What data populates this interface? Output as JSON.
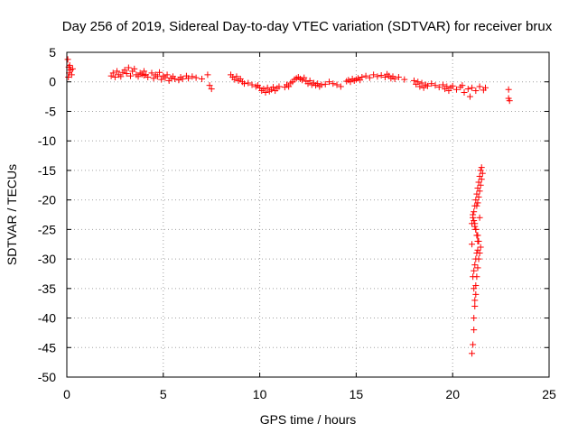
{
  "chart_data": {
    "type": "scatter",
    "title": "Day 256 of 2019, Sidereal Day-to-day VTEC variation (SDTVAR) for receiver brux",
    "xlabel": "GPS time / hours",
    "ylabel": "SDTVAR / TECUs",
    "xlim": [
      0,
      25
    ],
    "ylim": [
      -50,
      5
    ],
    "x_ticks": [
      0,
      5,
      10,
      15,
      20,
      25
    ],
    "y_ticks": [
      5,
      0,
      -5,
      -10,
      -15,
      -20,
      -25,
      -30,
      -35,
      -40,
      -45,
      -50
    ],
    "x_tick_labels": [
      "0",
      "5",
      "10",
      "15",
      "20",
      "25"
    ],
    "y_tick_labels": [
      "5",
      "0",
      "-5",
      "-10",
      "-15",
      "-20",
      "-25",
      "-30",
      "-35",
      "-40",
      "-45",
      "-50"
    ],
    "grid": true,
    "marker": "plus",
    "colors": {
      "series": "#ff0000",
      "grid": "#a0a0a0",
      "axes": "#000000"
    },
    "series": [
      {
        "name": "SDTVAR",
        "x": [
          0.05,
          0.1,
          0.12,
          0.15,
          0.2,
          0.25,
          0.3,
          0.08,
          2.3,
          2.4,
          2.5,
          2.6,
          2.7,
          2.8,
          2.9,
          3.0,
          3.1,
          3.2,
          3.3,
          3.4,
          3.5,
          3.6,
          3.7,
          3.8,
          3.9,
          4.0,
          4.0,
          4.1,
          4.2,
          4.4,
          4.5,
          4.6,
          4.7,
          4.8,
          4.9,
          5.0,
          5.1,
          5.2,
          5.3,
          5.4,
          5.5,
          5.6,
          5.8,
          5.9,
          6.0,
          6.2,
          6.3,
          6.5,
          6.7,
          7.0,
          7.3,
          7.4,
          7.5,
          8.5,
          8.6,
          8.7,
          8.8,
          8.9,
          9.0,
          9.1,
          9.2,
          9.4,
          9.6,
          9.8,
          9.9,
          10.0,
          10.1,
          10.2,
          10.3,
          10.4,
          10.5,
          10.6,
          10.7,
          10.8,
          10.9,
          11.0,
          11.3,
          11.4,
          11.5,
          11.6,
          11.7,
          11.8,
          11.9,
          12.0,
          12.1,
          12.2,
          12.3,
          12.4,
          12.5,
          12.6,
          12.7,
          12.8,
          12.9,
          13.0,
          13.1,
          13.2,
          13.4,
          13.6,
          13.8,
          14.0,
          14.2,
          14.5,
          14.6,
          14.7,
          14.8,
          14.9,
          15.0,
          15.1,
          15.2,
          15.3,
          15.5,
          15.7,
          15.9,
          16.1,
          16.3,
          16.5,
          16.6,
          16.7,
          16.8,
          16.9,
          17.0,
          17.2,
          17.5,
          18.0,
          18.1,
          18.2,
          18.3,
          18.4,
          18.5,
          18.6,
          18.7,
          18.9,
          19.1,
          19.3,
          19.5,
          19.6,
          19.7,
          19.8,
          19.9,
          20.0,
          20.2,
          20.4,
          20.5,
          20.6,
          20.8,
          20.9,
          21.0,
          21.2,
          21.4,
          21.6,
          21.7,
          22.9,
          22.9,
          22.95,
          21.0,
          21.05,
          21.1,
          21.1,
          21.15,
          21.2,
          21.2,
          21.25,
          21.3,
          21.35,
          21.4,
          21.45,
          21.3,
          21.25,
          21.2,
          21.15,
          21.1,
          21.05,
          21.0,
          21.0,
          21.25,
          21.3,
          21.35,
          21.4,
          21.45,
          21.5,
          21.55,
          21.5,
          21.45,
          21.4,
          21.35,
          21.3,
          21.25,
          21.2,
          21.15,
          21.1,
          21.05,
          21.15,
          21.2,
          21.3,
          21.4,
          21.35,
          21.3,
          21.25,
          21.2,
          21.15,
          21.1,
          21.05,
          21.1,
          21.15
        ],
        "y": [
          3.8,
          2.5,
          1.5,
          2.8,
          2.0,
          1.2,
          2.2,
          0.8,
          1.0,
          1.5,
          0.8,
          1.8,
          1.2,
          0.9,
          1.6,
          2.0,
          1.4,
          2.4,
          1.0,
          1.8,
          2.2,
          1.2,
          0.9,
          1.5,
          1.3,
          1.1,
          1.8,
          1.2,
          0.8,
          1.5,
          0.6,
          1.2,
          0.9,
          1.6,
          0.4,
          1.0,
          0.7,
          1.2,
          0.2,
          0.6,
          0.9,
          0.5,
          0.3,
          0.8,
          0.5,
          1.0,
          0.6,
          0.9,
          0.7,
          0.5,
          1.2,
          -0.6,
          -1.2,
          1.2,
          0.8,
          0.4,
          0.9,
          0.2,
          0.5,
          0.0,
          -0.3,
          -0.2,
          -0.5,
          -0.8,
          -0.6,
          -1.0,
          -1.5,
          -1.2,
          -1.8,
          -1.0,
          -1.6,
          -1.3,
          -0.9,
          -1.5,
          -1.1,
          -0.8,
          -0.9,
          -0.5,
          -0.8,
          -0.2,
          0.0,
          0.4,
          0.6,
          0.8,
          0.5,
          0.3,
          0.7,
          0.1,
          -0.3,
          0.2,
          -0.5,
          -0.2,
          -0.6,
          -0.3,
          -0.8,
          -0.5,
          -0.4,
          0.0,
          -0.3,
          -0.5,
          -0.8,
          0.1,
          0.3,
          0.0,
          0.5,
          0.2,
          0.4,
          0.6,
          0.3,
          0.8,
          1.0,
          0.7,
          1.2,
          0.9,
          1.1,
          0.8,
          1.3,
          1.0,
          0.6,
          0.9,
          0.5,
          0.8,
          0.4,
          0.2,
          -0.4,
          0.0,
          -0.8,
          -0.2,
          -1.0,
          -0.5,
          -0.7,
          -0.3,
          -0.6,
          -0.9,
          -0.5,
          -1.2,
          -0.8,
          -1.5,
          -1.0,
          -0.7,
          -1.3,
          -0.9,
          -0.6,
          -1.8,
          -1.2,
          -2.5,
          -1.0,
          -1.5,
          -0.8,
          -1.4,
          -1.0,
          -1.3,
          -2.8,
          -3.2,
          -46.0,
          -44.5,
          -42.0,
          -40.0,
          -38.0,
          -36.0,
          -34.5,
          -33.0,
          -31.5,
          -30.0,
          -29.0,
          -28.0,
          -27.0,
          -26.0,
          -25.0,
          -24.5,
          -23.5,
          -22.5,
          -24.0,
          -27.5,
          -21.0,
          -20.5,
          -19.5,
          -18.5,
          -17.5,
          -16.5,
          -15.5,
          -14.5,
          -15.0,
          -16.0,
          -17.0,
          -18.0,
          -19.0,
          -20.0,
          -21.0,
          -22.0,
          -23.0,
          -24.0,
          -25.0,
          -26.0,
          -23.0,
          -27.0,
          -28.5,
          -29.0,
          -30.0,
          -31.0,
          -32.0,
          -33.0,
          -35.0,
          -37.0
        ]
      }
    ]
  }
}
